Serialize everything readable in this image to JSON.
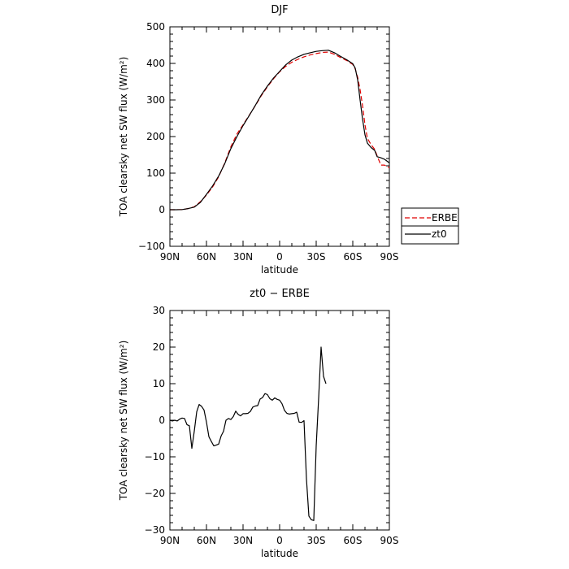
{
  "chart_data": [
    {
      "type": "line",
      "title": "DJF",
      "xlabel": "latitude",
      "ylabel": "TOA clearsky net SW flux (W/m²)",
      "xlim": [
        90,
        -90
      ],
      "ylim": [
        -100,
        500
      ],
      "x_ticks": [
        90,
        60,
        30,
        0,
        -30,
        -60,
        -90
      ],
      "x_tick_labels": [
        "90N",
        "60N",
        "30N",
        "0",
        "30S",
        "60S",
        "90S"
      ],
      "y_ticks": [
        -100,
        0,
        100,
        200,
        300,
        400,
        500
      ],
      "y_tick_labels": [
        "−100",
        "0",
        "100",
        "200",
        "300",
        "400",
        "500"
      ],
      "legend_position": "right",
      "series": [
        {
          "name": "ERBE",
          "color": "#e00000",
          "dash": "dashed",
          "points": [
            [
              90,
              0
            ],
            [
              85,
              0
            ],
            [
              80,
              0.5
            ],
            [
              75,
              3
            ],
            [
              70,
              8
            ],
            [
              65,
              22
            ],
            [
              60,
              40
            ],
            [
              55,
              62
            ],
            [
              50,
              90
            ],
            [
              45,
              128
            ],
            [
              40,
              172
            ],
            [
              35,
              207
            ],
            [
              30,
              232
            ],
            [
              25,
              258
            ],
            [
              20,
              284
            ],
            [
              15,
              312
            ],
            [
              10,
              336
            ],
            [
              5,
              358
            ],
            [
              0,
              377
            ],
            [
              -5,
              392
            ],
            [
              -10,
              403
            ],
            [
              -15,
              411
            ],
            [
              -20,
              418
            ],
            [
              -25,
              423
            ],
            [
              -30,
              427
            ],
            [
              -35,
              430
            ],
            [
              -40,
              431
            ],
            [
              -45,
              425
            ],
            [
              -50,
              416
            ],
            [
              -55,
              408
            ],
            [
              -60,
              397
            ],
            [
              -62,
              385
            ],
            [
              -64,
              362
            ],
            [
              -66,
              328
            ],
            [
              -68,
              285
            ],
            [
              -70,
              232
            ],
            [
              -72,
              195
            ],
            [
              -75,
              178
            ],
            [
              -78,
              165
            ],
            [
              -80,
              147
            ],
            [
              -83,
              122
            ],
            [
              -86,
              122
            ],
            [
              -90,
              115
            ]
          ]
        },
        {
          "name": "zt0",
          "color": "#000000",
          "dash": "solid",
          "points": [
            [
              90,
              0
            ],
            [
              85,
              0
            ],
            [
              80,
              0.5
            ],
            [
              75,
              3
            ],
            [
              70,
              7
            ],
            [
              65,
              20
            ],
            [
              60,
              42
            ],
            [
              55,
              65
            ],
            [
              50,
              92
            ],
            [
              45,
              126
            ],
            [
              40,
              167
            ],
            [
              35,
              200
            ],
            [
              30,
              230
            ],
            [
              25,
              257
            ],
            [
              20,
              285
            ],
            [
              15,
              314
            ],
            [
              10,
              338
            ],
            [
              5,
              360
            ],
            [
              0,
              378
            ],
            [
              -5,
              396
            ],
            [
              -10,
              409
            ],
            [
              -15,
              418
            ],
            [
              -20,
              425
            ],
            [
              -25,
              429
            ],
            [
              -30,
              433
            ],
            [
              -35,
              435
            ],
            [
              -40,
              436
            ],
            [
              -45,
              429
            ],
            [
              -50,
              419
            ],
            [
              -55,
              410
            ],
            [
              -60,
              399
            ],
            [
              -62,
              387
            ],
            [
              -64,
              355
            ],
            [
              -66,
              300
            ],
            [
              -68,
              248
            ],
            [
              -70,
              205
            ],
            [
              -72,
              182
            ],
            [
              -75,
              170
            ],
            [
              -78,
              162
            ],
            [
              -80,
              145
            ],
            [
              -83,
              142
            ],
            [
              -86,
              138
            ],
            [
              -90,
              128
            ]
          ]
        }
      ]
    },
    {
      "type": "line",
      "title": "zt0 − ERBE",
      "xlabel": "latitude",
      "ylabel": "TOA clearsky net SW flux (W/m²)",
      "xlim": [
        90,
        -90
      ],
      "ylim": [
        -30,
        30
      ],
      "x_ticks": [
        90,
        60,
        30,
        0,
        -30,
        -60,
        -90
      ],
      "x_tick_labels": [
        "90N",
        "60N",
        "30N",
        "0",
        "30S",
        "60S",
        "90S"
      ],
      "y_ticks": [
        -30,
        -20,
        -10,
        0,
        10,
        20,
        30
      ],
      "y_tick_labels": [
        "−30",
        "−20",
        "−10",
        "0",
        "10",
        "20",
        "30"
      ],
      "series": [
        {
          "color": "#000000",
          "dash": "solid",
          "points": [
            [
              90,
              0
            ],
            [
              88,
              -0.2
            ],
            [
              86,
              0
            ],
            [
              84,
              -0.2
            ],
            [
              82,
              0.3
            ],
            [
              80,
              0.6
            ],
            [
              78,
              0.5
            ],
            [
              76,
              -1.2
            ],
            [
              74,
              -1.5
            ],
            [
              72,
              -7.7
            ],
            [
              70,
              -3
            ],
            [
              68,
              2.3
            ],
            [
              66,
              4.3
            ],
            [
              64,
              3.8
            ],
            [
              62,
              2.8
            ],
            [
              60,
              -0.5
            ],
            [
              58,
              -4.5
            ],
            [
              56,
              -5.8
            ],
            [
              54,
              -7.0
            ],
            [
              52,
              -6.8
            ],
            [
              50,
              -6.5
            ],
            [
              48,
              -4.3
            ],
            [
              46,
              -3.0
            ],
            [
              44,
              0
            ],
            [
              42,
              0.5
            ],
            [
              40,
              0.2
            ],
            [
              38,
              1
            ],
            [
              36,
              2.5
            ],
            [
              34,
              1.6
            ],
            [
              32,
              1.2
            ],
            [
              30,
              1.8
            ],
            [
              28,
              1.8
            ],
            [
              26,
              1.9
            ],
            [
              24,
              2.4
            ],
            [
              22,
              3.6
            ],
            [
              20,
              3.9
            ],
            [
              18,
              4.0
            ],
            [
              16,
              5.8
            ],
            [
              14,
              6.2
            ],
            [
              12,
              7.3
            ],
            [
              10,
              7.0
            ],
            [
              8,
              5.9
            ],
            [
              6,
              5.5
            ],
            [
              4,
              6.1
            ],
            [
              2,
              5.7
            ],
            [
              0,
              5.5
            ],
            [
              -2,
              4.5
            ],
            [
              -4,
              2.7
            ],
            [
              -6,
              1.9
            ],
            [
              -8,
              1.7
            ],
            [
              -10,
              1.8
            ],
            [
              -12,
              1.9
            ],
            [
              -14,
              2.2
            ],
            [
              -16,
              -0.5
            ],
            [
              -18,
              -0.6
            ],
            [
              -20,
              -0.1
            ],
            [
              -22,
              -16
            ],
            [
              -24,
              -26.2
            ],
            [
              -26,
              -27.2
            ],
            [
              -28,
              -27.4
            ],
            [
              -30,
              -7
            ],
            [
              -32,
              6
            ],
            [
              -34,
              20
            ],
            [
              -36,
              12
            ],
            [
              -38,
              10
            ]
          ]
        }
      ]
    }
  ]
}
